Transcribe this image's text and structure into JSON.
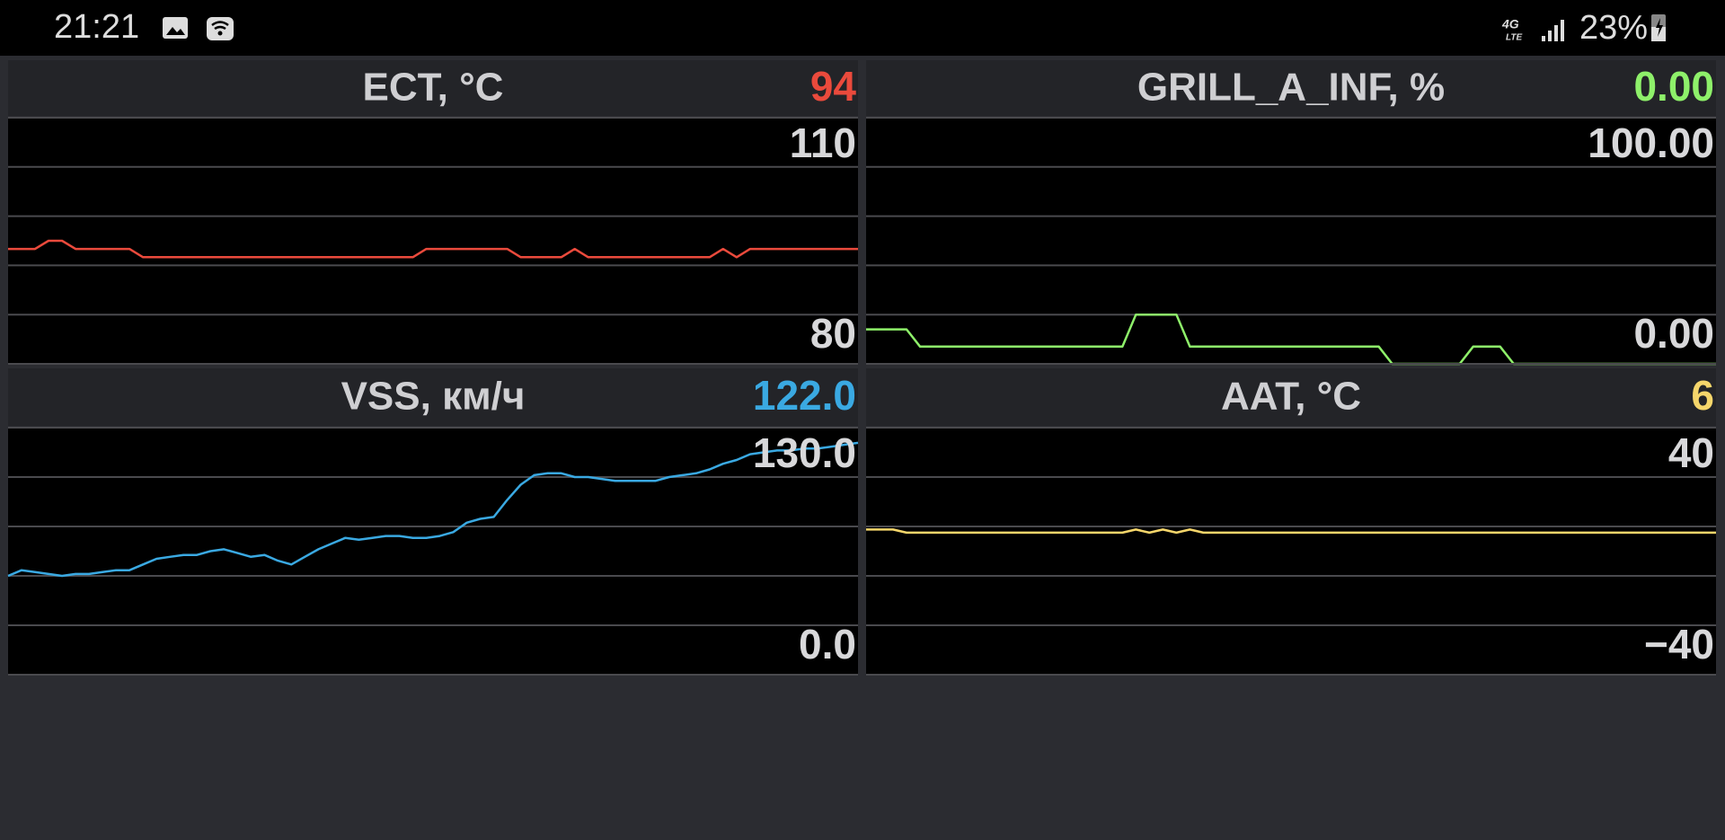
{
  "status_bar": {
    "time": "21:21",
    "network": "4G",
    "network_sub": "LTE",
    "battery": "23%"
  },
  "chart_data": [
    {
      "type": "line",
      "title": "ECT, °C",
      "current": 94,
      "color": "#ea4a3c",
      "ylim": [
        80,
        110
      ],
      "yticks": [
        80,
        110
      ],
      "values": [
        94,
        94,
        94,
        95,
        95,
        94,
        94,
        94,
        94,
        94,
        93,
        93,
        93,
        93,
        93,
        93,
        93,
        93,
        93,
        93,
        93,
        93,
        93,
        93,
        93,
        93,
        93,
        93,
        93,
        93,
        93,
        94,
        94,
        94,
        94,
        94,
        94,
        94,
        93,
        93,
        93,
        93,
        94,
        93,
        93,
        93,
        93,
        93,
        93,
        93,
        93,
        93,
        93,
        94,
        93,
        94,
        94,
        94,
        94,
        94,
        94,
        94,
        94,
        94
      ]
    },
    {
      "type": "line",
      "title": "GRILL_A_INF, %",
      "current": {
        "value": 0,
        "label": "0.00"
      },
      "color": "#8ef06a",
      "ylim": [
        0,
        100
      ],
      "yticks": [
        {
          "value": 0,
          "label": "0.00"
        },
        {
          "value": 100,
          "label": "100.00"
        }
      ],
      "values": [
        14,
        14,
        14,
        14,
        7,
        7,
        7,
        7,
        7,
        7,
        7,
        7,
        7,
        7,
        7,
        7,
        7,
        7,
        7,
        7,
        20,
        20,
        20,
        20,
        7,
        7,
        7,
        7,
        7,
        7,
        7,
        7,
        7,
        7,
        7,
        7,
        7,
        7,
        7,
        0,
        0,
        0,
        0,
        0,
        0,
        7,
        7,
        7,
        0,
        0,
        0,
        0,
        0,
        0,
        0,
        0,
        0,
        0,
        0,
        0,
        0,
        0,
        0,
        0
      ]
    },
    {
      "type": "line",
      "title": "VSS, км/ч",
      "current": {
        "value": 122,
        "label": "122.0"
      },
      "color": "#3aa9e2",
      "ylim": [
        0,
        130
      ],
      "yticks": [
        {
          "value": 0,
          "label": "0.0"
        },
        {
          "value": 130,
          "label": "130.0"
        }
      ],
      "values": [
        52,
        55,
        54,
        53,
        52,
        53,
        53,
        54,
        55,
        55,
        58,
        61,
        62,
        63,
        63,
        65,
        66,
        64,
        62,
        63,
        60,
        58,
        62,
        66,
        69,
        72,
        71,
        72,
        73,
        73,
        72,
        72,
        73,
        75,
        80,
        82,
        83,
        92,
        100,
        105,
        106,
        106,
        104,
        104,
        103,
        102,
        102,
        102,
        102,
        104,
        105,
        106,
        108,
        111,
        113,
        116,
        117,
        118,
        118,
        119,
        119,
        120,
        121,
        122
      ]
    },
    {
      "type": "line",
      "title": "AAT, °C",
      "current": 6,
      "color": "#f5d66b",
      "ylim": [
        -40,
        40
      ],
      "yticks": [
        {
          "value": -40,
          "label": "−40"
        },
        40
      ],
      "values": [
        7,
        7,
        7,
        6,
        6,
        6,
        6,
        6,
        6,
        6,
        6,
        6,
        6,
        6,
        6,
        6,
        6,
        6,
        6,
        6,
        7,
        6,
        7,
        6,
        7,
        6,
        6,
        6,
        6,
        6,
        6,
        6,
        6,
        6,
        6,
        6,
        6,
        6,
        6,
        6,
        6,
        6,
        6,
        6,
        6,
        6,
        6,
        6,
        6,
        6,
        6,
        6,
        6,
        6,
        6,
        6,
        6,
        6,
        6,
        6,
        6,
        6,
        6,
        6
      ]
    }
  ]
}
